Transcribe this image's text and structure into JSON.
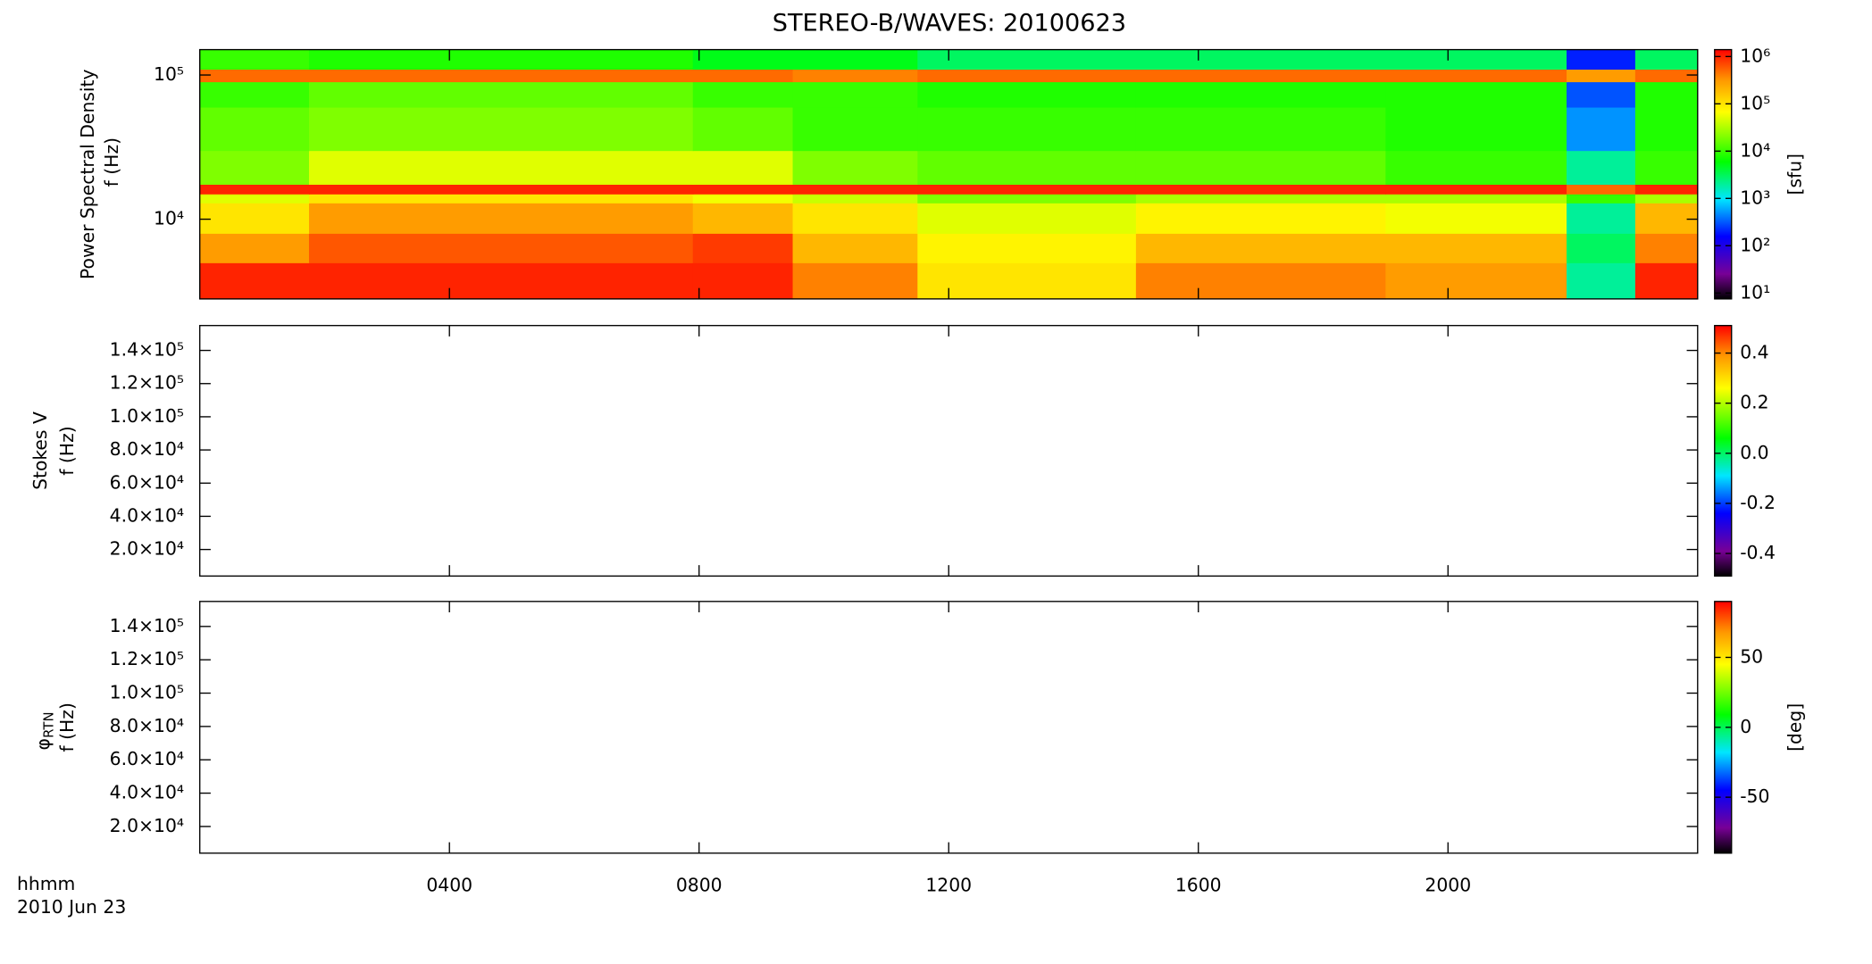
{
  "chart_data": [
    {
      "type": "heatmap",
      "title": "STEREO-B/WAVES: 20100623",
      "ylabel": "Power Spectral Density",
      "yunit": "f (Hz)",
      "yscale": "log",
      "ylim": [
        2800,
        150000
      ],
      "yticks": [
        {
          "value": 10000,
          "label": "10⁴"
        },
        {
          "value": 100000,
          "label": "10⁵"
        }
      ],
      "x_edges": [
        0,
        1.75,
        7.9,
        9.5,
        11.5,
        15,
        19,
        21.9,
        23,
        24
      ],
      "y_edges": [
        2800,
        5000,
        8000,
        13000,
        15000,
        17500,
        30000,
        60000,
        90000,
        110000,
        150000
      ],
      "z": [
        [
          1000000,
          1000000,
          1000000,
          400000,
          100000,
          400000,
          300000,
          2000,
          1000000
        ],
        [
          300000,
          600000,
          800000,
          200000,
          80000,
          200000,
          200000,
          3000,
          400000
        ],
        [
          100000,
          300000,
          200000,
          100000,
          50000,
          80000,
          60000,
          2000,
          200000
        ],
        [
          50000,
          100000,
          60000,
          40000,
          20000,
          30000,
          30000,
          10000,
          30000
        ],
        [
          1000000,
          1000000,
          1000000,
          1000000,
          1000000,
          1000000,
          1000000,
          500000,
          1000000
        ],
        [
          20000,
          50000,
          50000,
          20000,
          15000,
          15000,
          10000,
          2000,
          10000
        ],
        [
          15000,
          20000,
          15000,
          10000,
          10000,
          10000,
          8000,
          500,
          8000
        ],
        [
          10000,
          15000,
          10000,
          10000,
          8000,
          8000,
          8000,
          300,
          8000
        ],
        [
          500000,
          500000,
          500000,
          400000,
          500000,
          500000,
          500000,
          300000,
          500000
        ],
        [
          10000,
          8000,
          5000,
          5000,
          3000,
          3000,
          3000,
          200,
          3000
        ]
      ],
      "zscale": "log",
      "zlim": [
        7.5,
        1400000
      ],
      "zticks": [
        {
          "value": 10,
          "label": "10¹"
        },
        {
          "value": 100,
          "label": "10²"
        },
        {
          "value": 1000,
          "label": "10³"
        },
        {
          "value": 10000,
          "label": "10⁴"
        },
        {
          "value": 100000,
          "label": "10⁵"
        },
        {
          "value": 1000000,
          "label": "10⁶"
        }
      ],
      "colorbar_label": "[sfu]"
    },
    {
      "type": "heatmap",
      "ylabel": "Stokes V",
      "yunit": "f (Hz)",
      "ylim": [
        4000,
        155000
      ],
      "yticks": [
        {
          "value": 20000,
          "label": "2.0×10⁴"
        },
        {
          "value": 40000,
          "label": "4.0×10⁴"
        },
        {
          "value": 60000,
          "label": "6.0×10⁴"
        },
        {
          "value": 80000,
          "label": "8.0×10⁴"
        },
        {
          "value": 100000,
          "label": "1.0×10⁵"
        },
        {
          "value": 120000,
          "label": "1.2×10⁵"
        },
        {
          "value": 140000,
          "label": "1.4×10⁵"
        }
      ],
      "zlim": [
        -0.49,
        0.51
      ],
      "zticks": [
        -0.4,
        -0.2,
        {
          "value": 0,
          "label": "0.0"
        },
        0.2,
        0.4
      ]
    },
    {
      "type": "heatmap",
      "ylabel": "φ",
      "ylabel_subscript": "RTN",
      "yunit": "f (Hz)",
      "ylim": [
        4000,
        155000
      ],
      "yticks": [
        {
          "value": 20000,
          "label": "2.0×10⁴"
        },
        {
          "value": 40000,
          "label": "4.0×10⁴"
        },
        {
          "value": 60000,
          "label": "6.0×10⁴"
        },
        {
          "value": 80000,
          "label": "8.0×10⁴"
        },
        {
          "value": 100000,
          "label": "1.0×10⁵"
        },
        {
          "value": 120000,
          "label": "1.2×10⁵"
        },
        {
          "value": 140000,
          "label": "1.4×10⁵"
        }
      ],
      "zlim": [
        -90,
        90
      ],
      "zticks": [
        -50,
        0,
        50
      ],
      "colorbar_label": "[deg]",
      "xlim": [
        0,
        24
      ],
      "xticks": [
        {
          "value": 4,
          "label": "0400"
        },
        {
          "value": 8,
          "label": "0800"
        },
        {
          "value": 12,
          "label": "1200"
        },
        {
          "value": 16,
          "label": "1600"
        },
        {
          "value": 20,
          "label": "2000"
        }
      ],
      "xlabel": "hhmm",
      "date_label": "2010 Jun 23"
    }
  ]
}
